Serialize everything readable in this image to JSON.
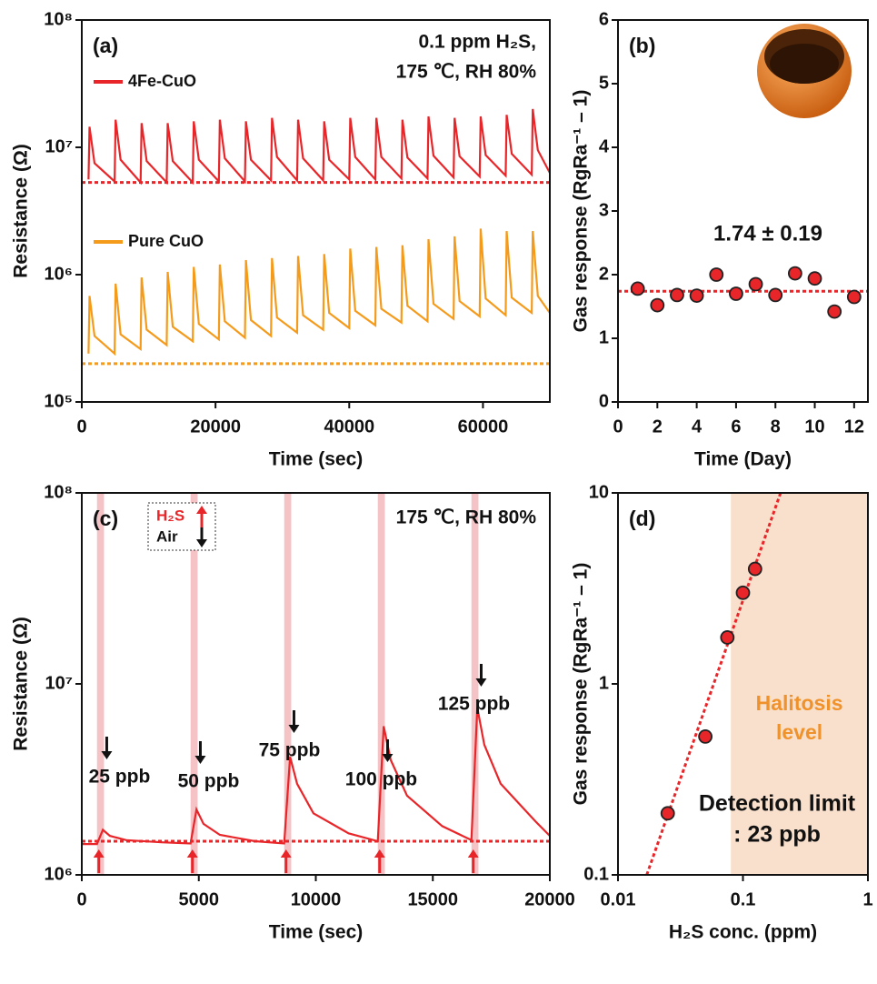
{
  "chart_data": [
    {
      "type": "line",
      "panel_label": "(a)",
      "x_label": "Time (sec)",
      "y_label": "Resistance (Ω)",
      "annotation": [
        "0.1 ppm H₂S,",
        "175 ℃, RH 80%"
      ],
      "xlim": [
        0,
        70000
      ],
      "xticks": [
        0,
        20000,
        40000,
        60000
      ],
      "ylim": [
        100000,
        100000000
      ],
      "ylog": true,
      "yticks": [
        {
          "value": 100000,
          "label": "10⁵"
        },
        {
          "value": 1000000,
          "label": "10⁶"
        },
        {
          "value": 10000000,
          "label": "10⁷"
        },
        {
          "value": 100000000,
          "label": "10⁸"
        }
      ],
      "x": [
        1000,
        1150,
        1900,
        4900,
        5050,
        5800,
        8800,
        8950,
        9700,
        12700,
        12850,
        13600,
        16600,
        16750,
        17500,
        20500,
        20650,
        21400,
        24400,
        24550,
        25300,
        28300,
        28450,
        29200,
        32200,
        32350,
        33100,
        36100,
        36250,
        37000,
        40000,
        40150,
        40900,
        43900,
        44050,
        44800,
        47800,
        47950,
        48700,
        51700,
        51850,
        52600,
        55600,
        55750,
        56500,
        59500,
        59650,
        60400,
        63400,
        63550,
        64300,
        67300,
        67450,
        68200,
        70000
      ],
      "series": [
        {
          "name": "4Fe-CuO",
          "color": "#e8262a",
          "baseline": 5300000,
          "values": [
            5600000,
            14500000,
            7500000,
            5400000,
            16500000,
            8000000,
            5300000,
            15500000,
            7800000,
            5300000,
            15500000,
            7800000,
            5300000,
            16000000,
            8000000,
            5400000,
            16500000,
            8200000,
            5400000,
            16000000,
            8000000,
            5500000,
            17000000,
            8400000,
            5500000,
            16500000,
            8200000,
            5500000,
            16000000,
            8000000,
            5600000,
            17000000,
            8400000,
            5600000,
            17000000,
            8400000,
            5700000,
            16500000,
            8300000,
            5700000,
            17500000,
            8600000,
            5800000,
            17000000,
            8500000,
            5900000,
            17500000,
            8700000,
            6000000,
            18000000,
            8900000,
            6100000,
            20000000,
            9500000,
            6300000
          ]
        },
        {
          "name": "Pure CuO",
          "color": "#f59b1c",
          "baseline": 200000,
          "values": [
            240000,
            680000,
            330000,
            240000,
            850000,
            340000,
            260000,
            950000,
            370000,
            280000,
            1050000,
            390000,
            300000,
            1150000,
            410000,
            310000,
            1200000,
            430000,
            320000,
            1300000,
            440000,
            330000,
            1350000,
            460000,
            350000,
            1400000,
            480000,
            370000,
            1450000,
            500000,
            380000,
            1600000,
            520000,
            400000,
            1650000,
            540000,
            420000,
            1700000,
            570000,
            430000,
            1900000,
            590000,
            450000,
            2000000,
            620000,
            470000,
            2300000,
            650000,
            480000,
            2200000,
            660000,
            500000,
            2200000,
            680000,
            500000
          ]
        }
      ]
    },
    {
      "type": "scatter",
      "panel_label": "(b)",
      "x_label": "Time (Day)",
      "y_label": "Gas response (RgRa⁻¹ – 1)",
      "annotation": [
        "1.74 ± 0.19"
      ],
      "mean": 1.74,
      "xlim": [
        0,
        12.7
      ],
      "xticks": [
        0,
        2,
        4,
        6,
        8,
        10,
        12
      ],
      "ylim": [
        0,
        6
      ],
      "yticks": [
        0,
        1,
        2,
        3,
        4,
        5,
        6
      ],
      "color": "#e8262a",
      "x": [
        1,
        2,
        3,
        4,
        5,
        6,
        7,
        8,
        9,
        10,
        11,
        12
      ],
      "values": [
        1.78,
        1.52,
        1.68,
        1.67,
        2.0,
        1.7,
        1.85,
        1.68,
        2.02,
        1.94,
        1.42,
        1.65
      ]
    },
    {
      "type": "line",
      "panel_label": "(c)",
      "x_label": "Time (sec)",
      "y_label": "Resistance (Ω)",
      "annotation": [
        "175 ℃, RH 80%"
      ],
      "legend": {
        "gas": "H₂S",
        "air": "Air"
      },
      "xlim": [
        0,
        20000
      ],
      "xticks": [
        0,
        5000,
        10000,
        15000,
        20000
      ],
      "ylim": [
        1000000,
        100000000
      ],
      "ylog": true,
      "yticks": [
        {
          "value": 1000000,
          "label": "10⁶"
        },
        {
          "value": 10000000,
          "label": "10⁷"
        },
        {
          "value": 100000000,
          "label": "10⁸"
        }
      ],
      "color": "#e8262a",
      "baseline": 1500000,
      "pulses": [
        {
          "x": [
            650,
            950
          ],
          "label": "25 ppb"
        },
        {
          "x": [
            4650,
            4950
          ],
          "label": "50 ppb"
        },
        {
          "x": [
            8650,
            8950
          ],
          "label": "75 ppb"
        },
        {
          "x": [
            12650,
            12950
          ],
          "label": "100 ppb"
        },
        {
          "x": [
            16650,
            16950
          ],
          "label": "125 ppb"
        }
      ],
      "x": [
        0,
        650,
        900,
        1200,
        1900,
        3400,
        4650,
        4900,
        5200,
        5900,
        7400,
        8650,
        8900,
        9200,
        9900,
        11400,
        12650,
        12900,
        13200,
        13900,
        15400,
        16650,
        16900,
        17200,
        17900,
        19400,
        20000
      ],
      "values": [
        1450000,
        1450000,
        1720000,
        1600000,
        1520000,
        1480000,
        1460000,
        2200000,
        1850000,
        1620000,
        1500000,
        1460000,
        4150000,
        3000000,
        2100000,
        1650000,
        1500000,
        6000000,
        4000000,
        2600000,
        1800000,
        1520000,
        7500000,
        4800000,
        3000000,
        1900000,
        1600000
      ]
    },
    {
      "type": "scatter",
      "panel_label": "(d)",
      "x_label": "H₂S conc. (ppm)",
      "y_label": "Gas response (RgRa⁻¹ – 1)",
      "annotation": [
        "Detection limit",
        ": 23 ppb"
      ],
      "xlim": [
        0.01,
        1
      ],
      "xlog": true,
      "xticks": [
        0.01,
        0.1,
        1
      ],
      "ylim": [
        0.1,
        10
      ],
      "ylog": true,
      "yticks": [
        0.1,
        1,
        10
      ],
      "color": "#e8262a",
      "shade": {
        "x": [
          0.08,
          1
        ],
        "label": [
          "Halitosis",
          "level"
        ],
        "color": "#f9e0cc",
        "text_color": "#f0922b"
      },
      "fit": {
        "x": [
          0.017,
          0.2
        ],
        "values": [
          0.1,
          10
        ]
      },
      "x": [
        0.025,
        0.05,
        0.075,
        0.1,
        0.125
      ],
      "values": [
        0.21,
        0.53,
        1.75,
        3.0,
        4.0
      ]
    }
  ]
}
